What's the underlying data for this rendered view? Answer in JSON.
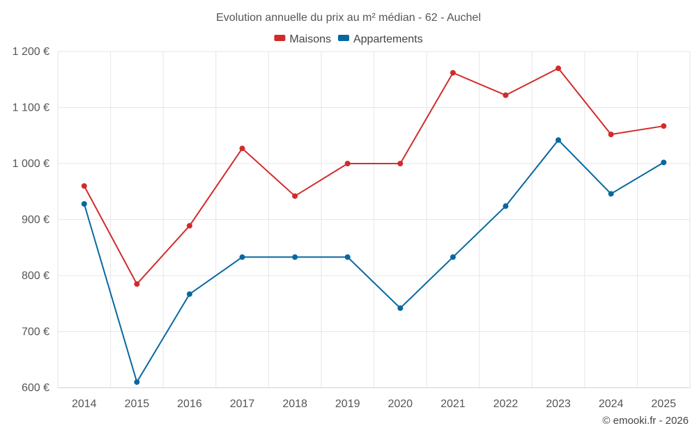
{
  "chart_data": {
    "type": "line",
    "title": "Evolution annuelle du prix au m² médian - 62 - Auchel",
    "categories": [
      "2014",
      "2015",
      "2016",
      "2017",
      "2018",
      "2019",
      "2020",
      "2021",
      "2022",
      "2023",
      "2024",
      "2025"
    ],
    "series": [
      {
        "name": "Maisons",
        "color": "#d22b2b",
        "values": [
          960,
          785,
          889,
          1027,
          942,
          1000,
          1000,
          1162,
          1122,
          1170,
          1052,
          1067
        ]
      },
      {
        "name": "Appartements",
        "color": "#07689f",
        "values": [
          928,
          610,
          767,
          833,
          833,
          833,
          742,
          833,
          924,
          1042,
          946,
          1002
        ]
      }
    ],
    "yticks": [
      600,
      700,
      800,
      900,
      1000,
      1100,
      1200
    ],
    "ytick_labels": [
      "600 €",
      "700 €",
      "800 €",
      "900 €",
      "1 000 €",
      "1 100 €",
      "1 200 €"
    ],
    "ylim": [
      600,
      1200
    ],
    "xlabel": "",
    "ylabel": "",
    "grid": true,
    "legend_position": "top-center"
  },
  "credit": "© emooki.fr - 2026"
}
